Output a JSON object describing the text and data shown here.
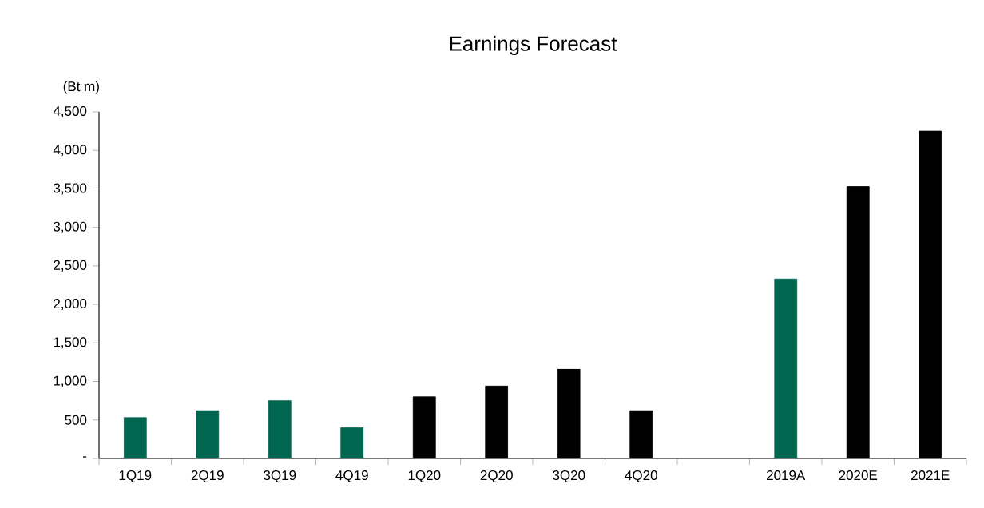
{
  "chart_data": {
    "type": "bar",
    "title": "Earnings Forecast",
    "ylabel": "(Bt m)",
    "categories": [
      "1Q19",
      "2Q19",
      "3Q19",
      "4Q19",
      "1Q20",
      "2Q20",
      "3Q20",
      "4Q20",
      null,
      "2019A",
      "2020E",
      "2021E"
    ],
    "values": [
      530,
      620,
      750,
      400,
      800,
      940,
      1160,
      620,
      null,
      2330,
      3530,
      4250
    ],
    "colors": [
      "#006650",
      "#006650",
      "#006650",
      "#006650",
      "#000000",
      "#000000",
      "#000000",
      "#000000",
      "#000000",
      "#006650",
      "#000000",
      "#000000"
    ],
    "ylim": [
      0,
      4500
    ],
    "yticks": [
      {
        "value": 0,
        "label": "-"
      },
      {
        "value": 500,
        "label": "500"
      },
      {
        "value": 1000,
        "label": "1,000"
      },
      {
        "value": 1500,
        "label": "1,500"
      },
      {
        "value": 2000,
        "label": "2,000"
      },
      {
        "value": 2500,
        "label": "2,500"
      },
      {
        "value": 3000,
        "label": "3,000"
      },
      {
        "value": 3500,
        "label": "3,500"
      },
      {
        "value": 4000,
        "label": "4,000"
      },
      {
        "value": 4500,
        "label": "4,500"
      }
    ],
    "grid": false
  }
}
